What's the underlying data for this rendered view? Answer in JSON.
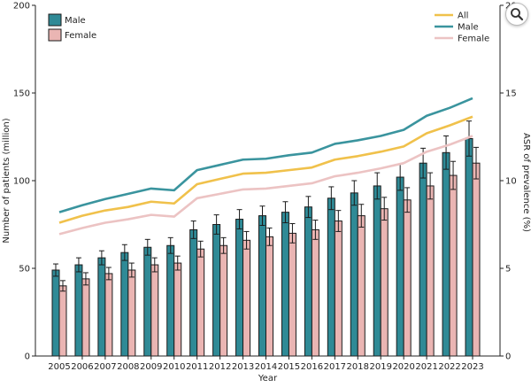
{
  "chart_data": {
    "type": "bar+line",
    "categories": [
      "2005",
      "2006",
      "2007",
      "2008",
      "2009",
      "2010",
      "2011",
      "2012",
      "2013",
      "2014",
      "2015",
      "2016",
      "2017",
      "2018",
      "2019",
      "2020",
      "2021",
      "2022",
      "2023"
    ],
    "xlabel": "Year",
    "ylabel": "Number of patients (million)",
    "y2label": "ASR of prevalence (%)",
    "ylim": [
      0,
      200
    ],
    "y2lim": [
      0,
      20
    ],
    "yticks": [
      0,
      50,
      100,
      150,
      200
    ],
    "y2ticks": [
      0,
      5,
      10,
      15,
      20
    ],
    "bar_series": [
      {
        "name": "Male",
        "color": "#2f8a96",
        "values": [
          49,
          52,
          56,
          59,
          62,
          63,
          72,
          75,
          78,
          80,
          82,
          85,
          90,
          93,
          97,
          102,
          110,
          116,
          124
        ],
        "errors": [
          3.5,
          4,
          4,
          4.5,
          4.5,
          4.5,
          5,
          5.5,
          5.5,
          5.5,
          6,
          6,
          6.5,
          7,
          7.5,
          7.5,
          8.5,
          9.5,
          10
        ]
      },
      {
        "name": "Female",
        "color": "#eab5b3",
        "values": [
          40,
          44,
          47,
          49,
          52,
          53,
          61,
          63,
          66,
          68,
          70,
          72,
          77,
          80,
          84,
          89,
          97,
          103,
          110
        ],
        "errors": [
          3,
          3.5,
          3.5,
          4,
          4,
          4,
          4.5,
          4.5,
          5,
          5,
          5.5,
          5.5,
          6,
          6.5,
          6.5,
          7,
          7.5,
          8,
          9
        ]
      }
    ],
    "line_series": [
      {
        "name": "All",
        "color": "#f0c14b",
        "values": [
          7.6,
          8.0,
          8.3,
          8.5,
          8.8,
          8.7,
          9.8,
          10.1,
          10.4,
          10.45,
          10.6,
          10.75,
          11.2,
          11.4,
          11.65,
          11.95,
          12.7,
          13.15,
          13.65
        ]
      },
      {
        "name": "Male",
        "color": "#3a949e",
        "values": [
          8.2,
          8.6,
          8.95,
          9.25,
          9.55,
          9.45,
          10.6,
          10.9,
          11.2,
          11.25,
          11.45,
          11.6,
          12.1,
          12.3,
          12.55,
          12.9,
          13.7,
          14.15,
          14.7
        ]
      },
      {
        "name": "Female",
        "color": "#ecc3c3",
        "values": [
          6.95,
          7.3,
          7.6,
          7.8,
          8.05,
          7.95,
          9.0,
          9.25,
          9.5,
          9.55,
          9.7,
          9.85,
          10.25,
          10.45,
          10.7,
          11.0,
          11.65,
          12.05,
          12.55
        ]
      }
    ],
    "bar_legend_placement": "top-left",
    "line_legend_placement": "top-right",
    "grid": false
  },
  "ui": {
    "zoom_icon": "magnifier-icon"
  }
}
